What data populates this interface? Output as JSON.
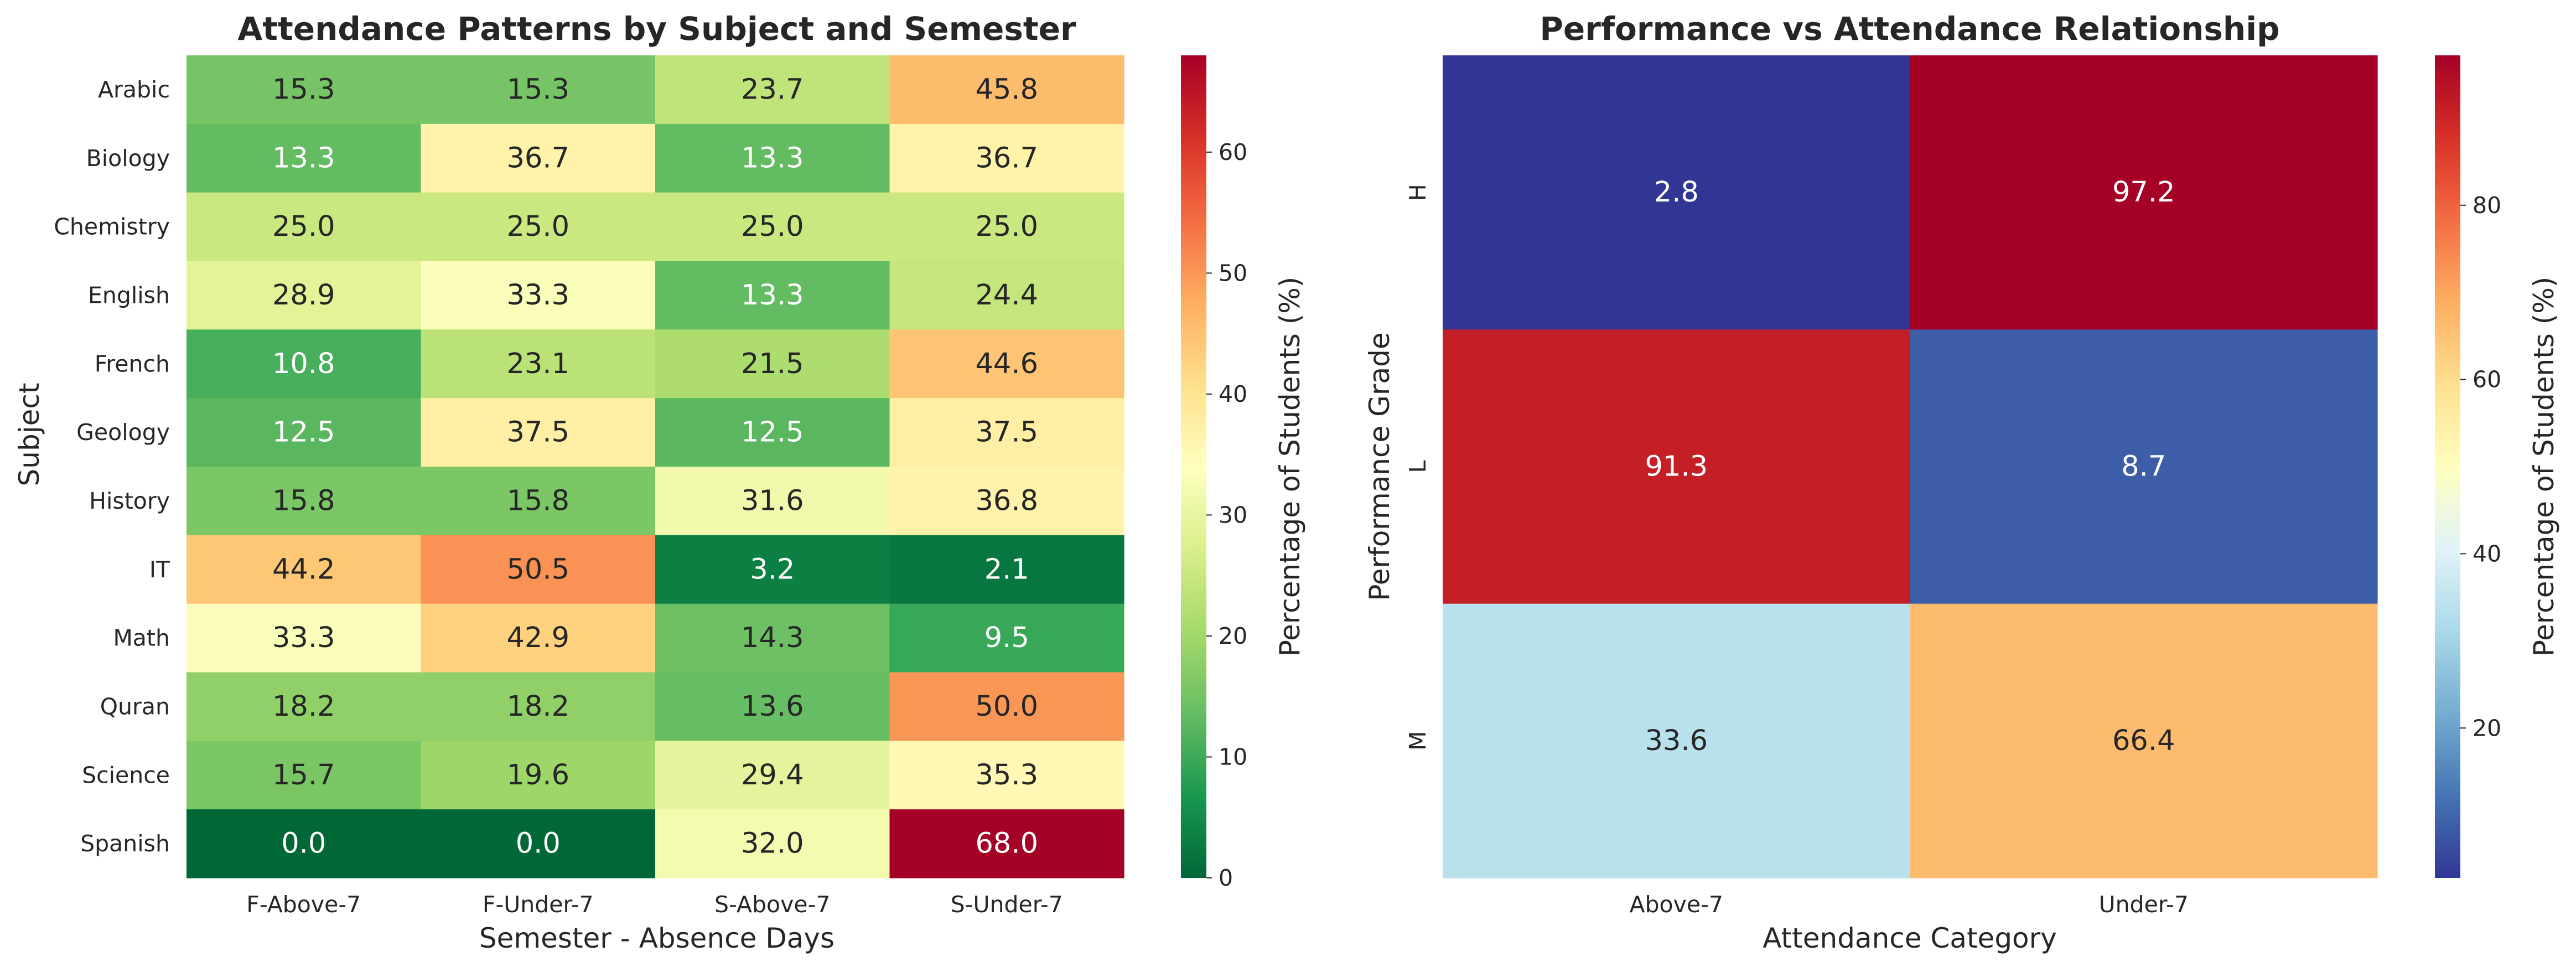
{
  "chart_data": [
    {
      "type": "heatmap",
      "title": "Attendance Patterns by Subject and Semester",
      "xlabel": "Semester - Absence Days",
      "ylabel": "Subject",
      "x_categories": [
        "F-Above-7",
        "F-Under-7",
        "S-Above-7",
        "S-Under-7"
      ],
      "y_categories": [
        "Arabic",
        "Biology",
        "Chemistry",
        "English",
        "French",
        "Geology",
        "History",
        "IT",
        "Math",
        "Quran",
        "Science",
        "Spanish"
      ],
      "values": [
        [
          15.3,
          15.3,
          23.7,
          45.8
        ],
        [
          13.3,
          36.7,
          13.3,
          36.7
        ],
        [
          25.0,
          25.0,
          25.0,
          25.0
        ],
        [
          28.9,
          33.3,
          13.3,
          24.4
        ],
        [
          10.8,
          23.1,
          21.5,
          44.6
        ],
        [
          12.5,
          37.5,
          12.5,
          37.5
        ],
        [
          15.8,
          15.8,
          31.6,
          36.8
        ],
        [
          44.2,
          50.5,
          3.2,
          2.1
        ],
        [
          33.3,
          42.9,
          14.3,
          9.5
        ],
        [
          18.2,
          18.2,
          13.6,
          50.0
        ],
        [
          15.7,
          19.6,
          29.4,
          35.3
        ],
        [
          0.0,
          0.0,
          32.0,
          68.0
        ]
      ],
      "colormap": "RdYlGn_r",
      "vmin": 0,
      "vmax": 68.0,
      "colorbar": {
        "label": "Percentage of Students (%)",
        "ticks": [
          0,
          10,
          20,
          30,
          40,
          50,
          60
        ]
      },
      "annotation_format": "0.1f"
    },
    {
      "type": "heatmap",
      "title": "Performance vs Attendance Relationship",
      "xlabel": "Attendance Category",
      "ylabel": "Performance Grade",
      "x_categories": [
        "Above-7",
        "Under-7"
      ],
      "y_categories": [
        "H",
        "L",
        "M"
      ],
      "values": [
        [
          2.8,
          97.2
        ],
        [
          91.3,
          8.7
        ],
        [
          33.6,
          66.4
        ]
      ],
      "colormap": "RdYlBu_r",
      "vmin": 2.8,
      "vmax": 97.2,
      "colorbar": {
        "label": "Percentage of Students (%)",
        "ticks": [
          20,
          40,
          60,
          80
        ]
      },
      "annotation_format": "0.1f"
    }
  ]
}
